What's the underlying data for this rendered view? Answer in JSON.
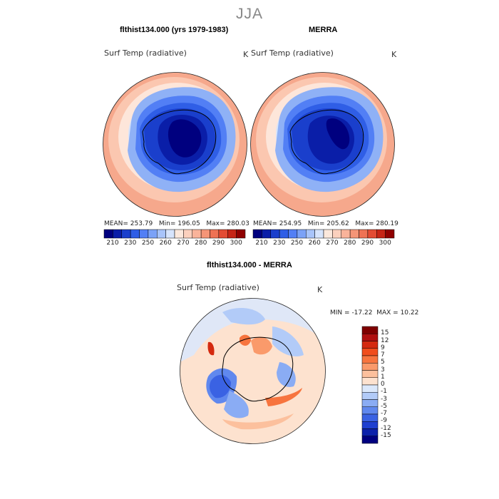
{
  "title": "JJA",
  "panels": [
    {
      "title": "flthist134.000 (yrs 1979-1983)",
      "variable": "Surf Temp (radiative)",
      "units": "K",
      "stats": {
        "mean_label": "MEAN=",
        "mean": "253.79",
        "min_label": "Min=",
        "min": "196.05",
        "max_label": "Max=",
        "max": "280.03"
      }
    },
    {
      "title": "MERRA",
      "variable": "Surf Temp (radiative)",
      "units": "K",
      "stats": {
        "mean_label": "MEAN=",
        "mean": "254.95",
        "min_label": "Min=",
        "min": "205.62",
        "max_label": "Max=",
        "max": "280.19"
      }
    }
  ],
  "abs_colorbar": {
    "colors": [
      "#00007f",
      "#0a1ea8",
      "#1a3fcc",
      "#2f5ee6",
      "#527ff5",
      "#7ba2f7",
      "#a8c4fa",
      "#d6e4fc",
      "#fbe8dc",
      "#fbd0bd",
      "#f9b39a",
      "#f59577",
      "#ef7254",
      "#e34b33",
      "#c62516",
      "#8f0000"
    ],
    "labels": [
      "210",
      "230",
      "250",
      "260",
      "270",
      "280",
      "290",
      "300"
    ]
  },
  "diff_panel": {
    "title": "flthist134.000 - MERRA",
    "variable": "Surf Temp (radiative)",
    "units": "K",
    "stats": {
      "min_label": "MIN =",
      "min": "-17.22",
      "max_label": "MAX =",
      "max": "10.22"
    }
  },
  "diff_colorbar": {
    "colors": [
      "#7f0000",
      "#b01010",
      "#d42a10",
      "#f04d1c",
      "#f7743e",
      "#fa9a6b",
      "#fcc09d",
      "#fde2cf",
      "#dbe8fb",
      "#b2cbf8",
      "#8aacf4",
      "#6088ee",
      "#3a62e3",
      "#1e3fd0",
      "#0c22ab",
      "#000080"
    ],
    "labels": [
      "15",
      "12",
      "9",
      "7",
      "5",
      "3",
      "1",
      "0",
      "-1",
      "-3",
      "-5",
      "-7",
      "-9",
      "-12",
      "-15"
    ]
  }
}
